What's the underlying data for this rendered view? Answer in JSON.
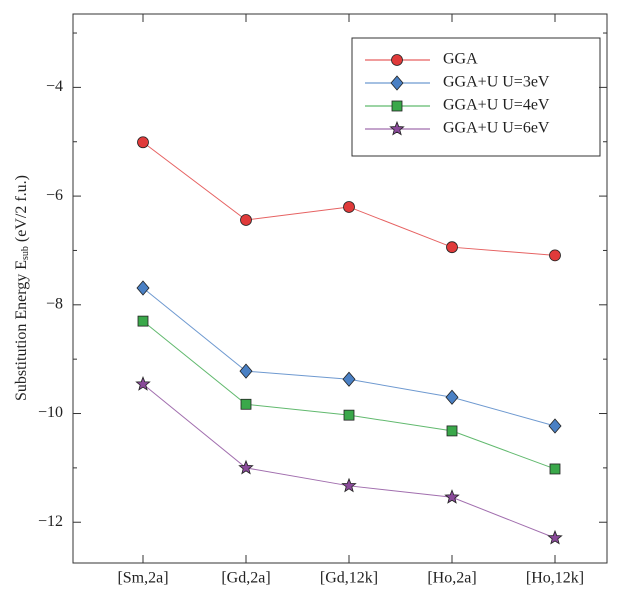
{
  "chart_data": {
    "type": "line",
    "y_label": "Substitution Energy E",
    "y_label_sub": "sub",
    "y_label_unit": "(eV/2 f.u.)",
    "categories": [
      "[Sm,2a]",
      "[Gd,2a]",
      "[Gd,12k]",
      "[Ho,2a]",
      "[Ho,12k]"
    ],
    "series": [
      {
        "name": "GGA",
        "color": "#e03a3a",
        "marker": "circle",
        "values": [
          -5.01,
          -6.44,
          -6.2,
          -6.94,
          -7.09
        ]
      },
      {
        "name": "GGA+U U=3eV",
        "color": "#4a80c4",
        "marker": "diamond",
        "values": [
          -7.69,
          -9.22,
          -9.37,
          -9.7,
          -10.23
        ]
      },
      {
        "name": "GGA+U U=4eV",
        "color": "#3aa84a",
        "marker": "square",
        "values": [
          -8.3,
          -9.83,
          -10.03,
          -10.32,
          -11.02
        ]
      },
      {
        "name": "GGA+U U=6eV",
        "color": "#8a4a9a",
        "marker": "star",
        "values": [
          -9.46,
          -11.0,
          -11.33,
          -11.54,
          -12.29
        ]
      }
    ],
    "ylim": [
      -12.75,
      -2.65
    ],
    "yticks": [
      {
        "value": -12,
        "label": "−12"
      },
      {
        "value": -10,
        "label": "−10"
      },
      {
        "value": -8,
        "label": "−8"
      },
      {
        "value": -6,
        "label": "−6"
      },
      {
        "value": -4,
        "label": "−4"
      }
    ],
    "yticks_minor": [
      -11,
      -9,
      -7,
      -5,
      -3
    ],
    "legend": "upper right"
  }
}
